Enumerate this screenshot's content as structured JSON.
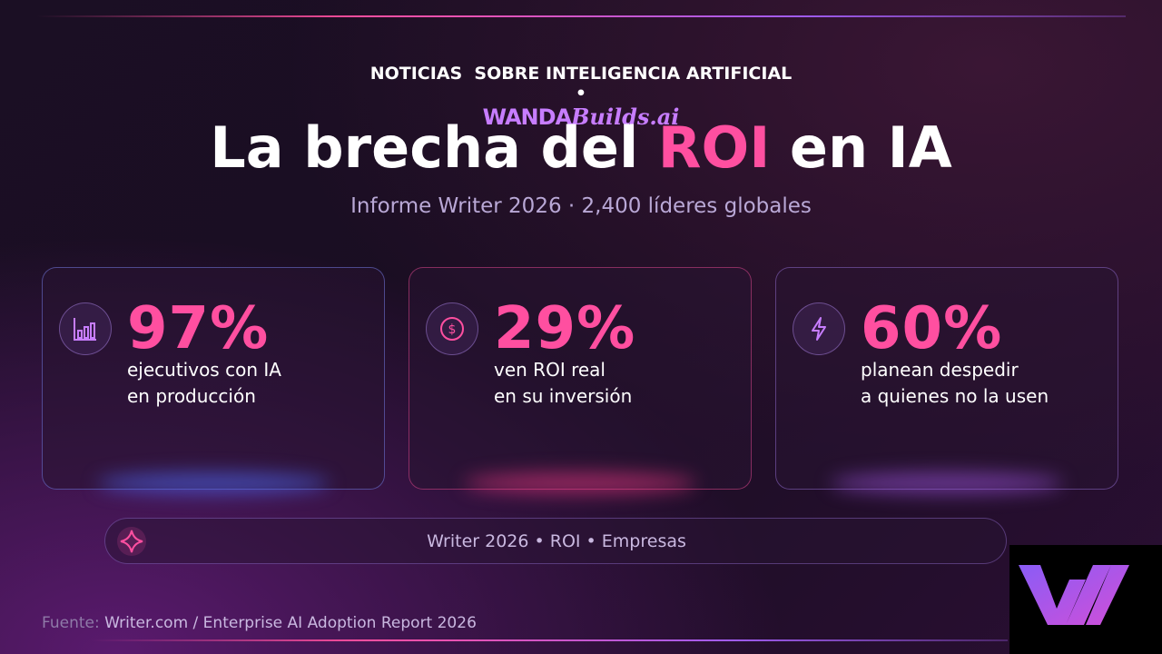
{
  "header": {
    "kicker": "NOTICIAS  SOBRE INTELIGENCIA ARTIFICIAL",
    "separator": "•",
    "brand": {
      "name": "WANDA",
      "suffix": "Builds.ai"
    }
  },
  "title": {
    "before": "La brecha del",
    "highlight": "ROI",
    "after": "en IA"
  },
  "subtitle": "Informe Writer 2026 · 2,400 líderes globales",
  "cards": [
    {
      "value": "97%",
      "lines": [
        "ejecutivos con IA",
        "en producción"
      ]
    },
    {
      "value": "29%",
      "lines": [
        "ven ROI real",
        "en su inversión"
      ]
    },
    {
      "value": "60%",
      "lines": [
        "planean despedir",
        "a quienes no la usen"
      ]
    }
  ],
  "tags": "Writer 2026 • ROI • Empresas",
  "source": {
    "label": "Fuente:",
    "text": "Writer.com / Enterprise AI Adoption Report 2026"
  }
}
